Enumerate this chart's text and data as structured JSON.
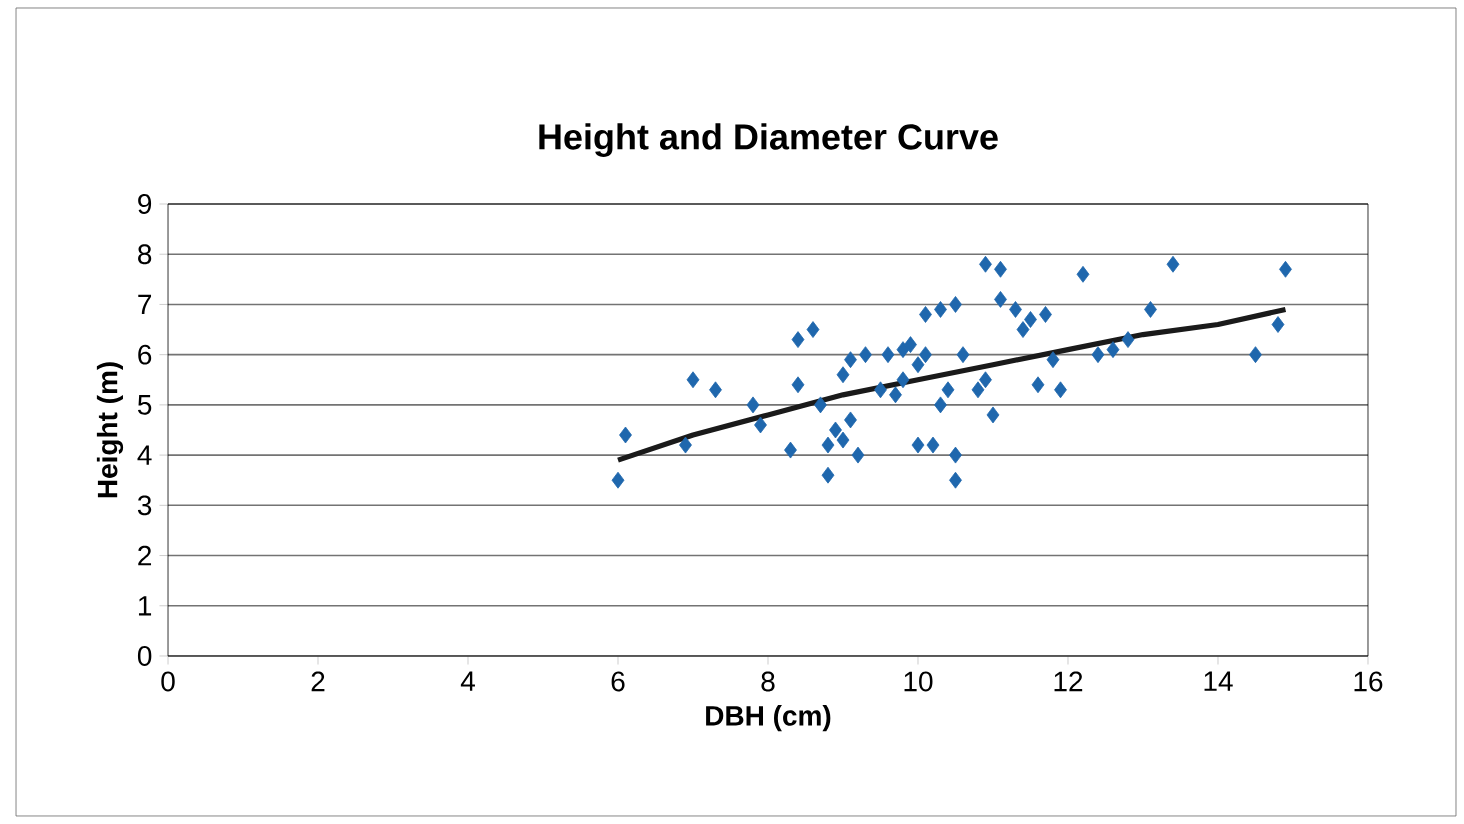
{
  "chart_data": {
    "type": "scatter",
    "title": "Height and Diameter Curve",
    "xlabel": "DBH (cm)",
    "ylabel": "Height (m)",
    "xlim": [
      0,
      16
    ],
    "xticks": [
      0,
      2,
      4,
      6,
      8,
      10,
      12,
      14,
      16
    ],
    "ylim": [
      0,
      9
    ],
    "yticks": [
      0,
      1,
      2,
      3,
      4,
      5,
      6,
      7,
      8,
      9
    ],
    "grid": "y",
    "series": [
      {
        "color": "#1f67ad",
        "marker": "diamond",
        "x": [
          6.0,
          6.1,
          6.9,
          7.0,
          7.3,
          7.8,
          7.9,
          8.3,
          8.4,
          8.4,
          8.6,
          8.7,
          8.8,
          8.8,
          8.9,
          9.0,
          9.0,
          9.1,
          9.1,
          9.2,
          9.3,
          9.5,
          9.6,
          9.7,
          9.8,
          9.8,
          9.9,
          10.0,
          10.0,
          10.1,
          10.2,
          10.1,
          10.3,
          10.3,
          10.4,
          10.5,
          10.5,
          10.5,
          10.6,
          10.8,
          10.9,
          11.0,
          10.9,
          11.1,
          11.1,
          11.3,
          11.4,
          11.5,
          11.6,
          11.7,
          11.8,
          11.9,
          12.2,
          12.4,
          12.6,
          12.8,
          13.1,
          13.4,
          14.5,
          14.8,
          14.9
        ],
        "values": [
          3.5,
          4.4,
          4.2,
          5.5,
          5.3,
          5.0,
          4.6,
          4.1,
          5.4,
          6.3,
          6.5,
          5.0,
          4.2,
          3.6,
          4.5,
          4.3,
          5.6,
          5.9,
          4.7,
          4.0,
          6.0,
          5.3,
          6.0,
          5.2,
          5.5,
          6.1,
          6.2,
          4.2,
          5.8,
          6.0,
          4.2,
          6.8,
          6.9,
          5.0,
          5.3,
          7.0,
          3.5,
          4.0,
          6.0,
          5.3,
          5.5,
          4.8,
          7.8,
          7.7,
          7.1,
          6.9,
          6.5,
          6.7,
          5.4,
          6.8,
          5.9,
          5.3,
          7.6,
          6.0,
          6.1,
          6.3,
          6.9,
          7.8,
          6.0,
          6.6,
          7.7
        ]
      },
      {
        "type": "line",
        "color": "#1a1a1a",
        "marker": "none",
        "line_style": "solid",
        "x": [
          6.0,
          7.0,
          8.0,
          9.0,
          10.0,
          11.0,
          12.0,
          13.0,
          14.0,
          14.9
        ],
        "values": [
          3.9,
          4.4,
          4.8,
          5.2,
          5.5,
          5.8,
          6.1,
          6.4,
          6.6,
          6.9
        ]
      }
    ]
  }
}
